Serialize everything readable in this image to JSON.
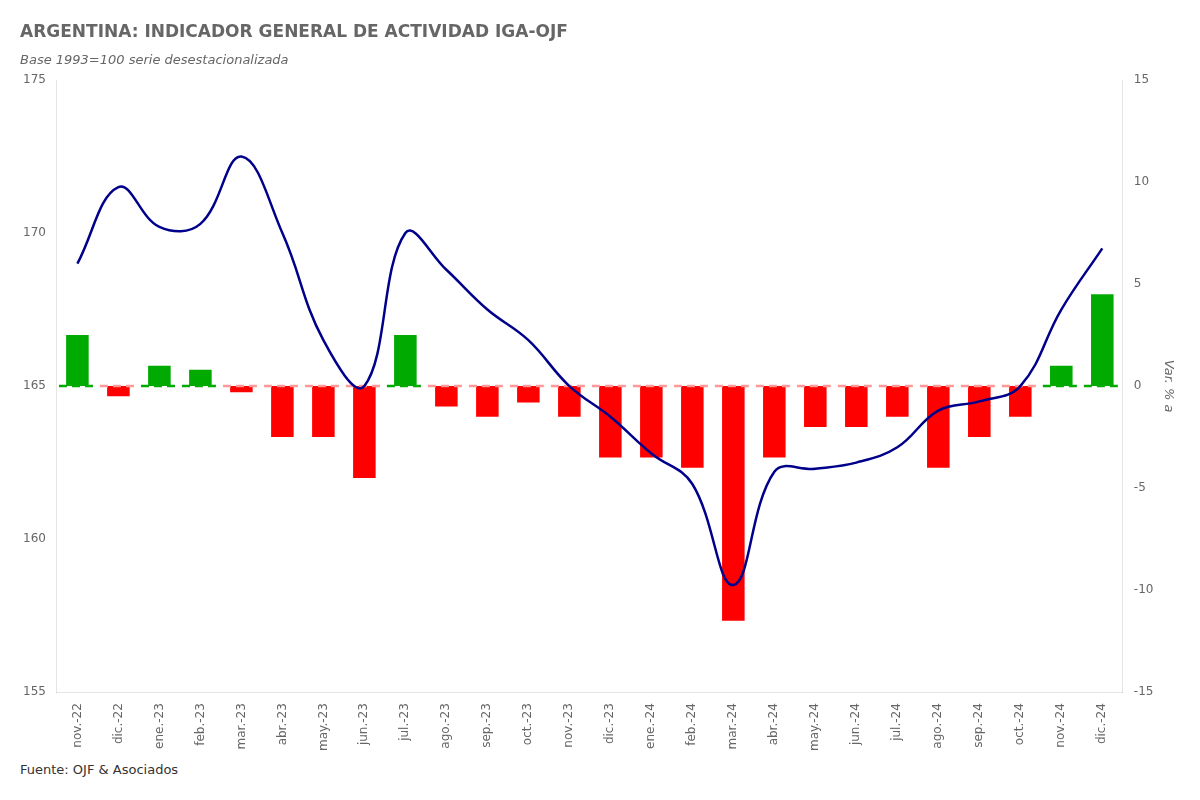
{
  "chart_data": {
    "type": "bar",
    "title": "ARGENTINA: INDICADOR GENERAL DE ACTIVIDAD IGA-OJF",
    "subtitle": "Base 1993=100 serie desestacionalizada",
    "y2label": "Var. % a",
    "source": "Fuente: OJF & Asociados",
    "categories": [
      "nov.-22",
      "dic.-22",
      "ene.-23",
      "feb.-23",
      "mar.-23",
      "abr.-23",
      "may.-23",
      "jun.-23",
      "jul.-23",
      "ago.-23",
      "sep.-23",
      "oct.-23",
      "nov.-23",
      "dic.-23",
      "ene.-24",
      "feb.-24",
      "mar.-24",
      "abr.-24",
      "may.-24",
      "jun.-24",
      "jul.-24",
      "ago.-24",
      "sep.-24",
      "oct.-24",
      "nov.-24",
      "dic.-24"
    ],
    "series": [
      {
        "type": "bar",
        "axis": "y2",
        "colors": [
          "#00aa00",
          "#ff0000",
          "#00aa00",
          "#00aa00",
          "#ff0000",
          "#ff0000",
          "#ff0000",
          "#ff0000",
          "#00aa00",
          "#ff0000",
          "#ff0000",
          "#ff0000",
          "#ff0000",
          "#ff0000",
          "#ff0000",
          "#ff0000",
          "#ff0000",
          "#ff0000",
          "#ff0000",
          "#ff0000",
          "#ff0000",
          "#ff0000",
          "#ff0000",
          "#ff0000",
          "#00aa00",
          "#00aa00"
        ],
        "values": [
          2.5,
          -0.5,
          1.0,
          0.8,
          -0.3,
          -2.5,
          -2.5,
          -4.5,
          2.5,
          -1.0,
          -1.5,
          -0.8,
          -1.5,
          -3.5,
          -3.5,
          -4.0,
          -11.5,
          -3.5,
          -2.0,
          -2.0,
          -1.5,
          -4.0,
          -2.5,
          -1.5,
          1.0,
          4.5
        ]
      },
      {
        "type": "line",
        "axis": "y",
        "color": "#00008B",
        "values": [
          169.0,
          171.5,
          170.2,
          170.3,
          172.5,
          170.0,
          166.5,
          165.0,
          170.0,
          168.8,
          167.5,
          166.5,
          165.0,
          164.0,
          162.8,
          161.8,
          158.5,
          162.2,
          162.3,
          162.5,
          163.0,
          164.2,
          164.5,
          165.0,
          167.5,
          169.5
        ]
      },
      {
        "type": "line",
        "axis": "y",
        "line_style": "dashed",
        "colors": [
          "#00aa00",
          "#ff9999",
          "#00aa00",
          "#00aa00",
          "#ff9999",
          "#ff9999",
          "#ff9999",
          "#ff9999",
          "#00aa00",
          "#ff9999",
          "#ff9999",
          "#ff9999",
          "#ff9999",
          "#ff9999",
          "#ff9999",
          "#ff9999",
          "#ff9999",
          "#ff9999",
          "#ff9999",
          "#ff9999",
          "#ff9999",
          "#ff9999",
          "#ff9999",
          "#ff9999",
          "#00aa00",
          "#00aa00"
        ],
        "values": [
          165.0,
          165.0,
          165.0,
          165.0,
          165.0,
          165.0,
          165.0,
          165.0,
          165.0,
          165.0,
          165.0,
          165.0,
          165.0,
          165.0,
          165.0,
          165.0,
          165.0,
          165.0,
          165.0,
          165.0,
          165.0,
          165.0,
          165.0,
          165.0,
          165.0,
          165.0
        ]
      }
    ],
    "ylim": [
      155,
      175
    ],
    "yticks": [
      155,
      160,
      165,
      170,
      175
    ],
    "y2lim": [
      -15,
      15
    ],
    "y2ticks": [
      -15,
      -10,
      -5,
      0,
      5,
      10,
      15
    ],
    "grid": false
  }
}
